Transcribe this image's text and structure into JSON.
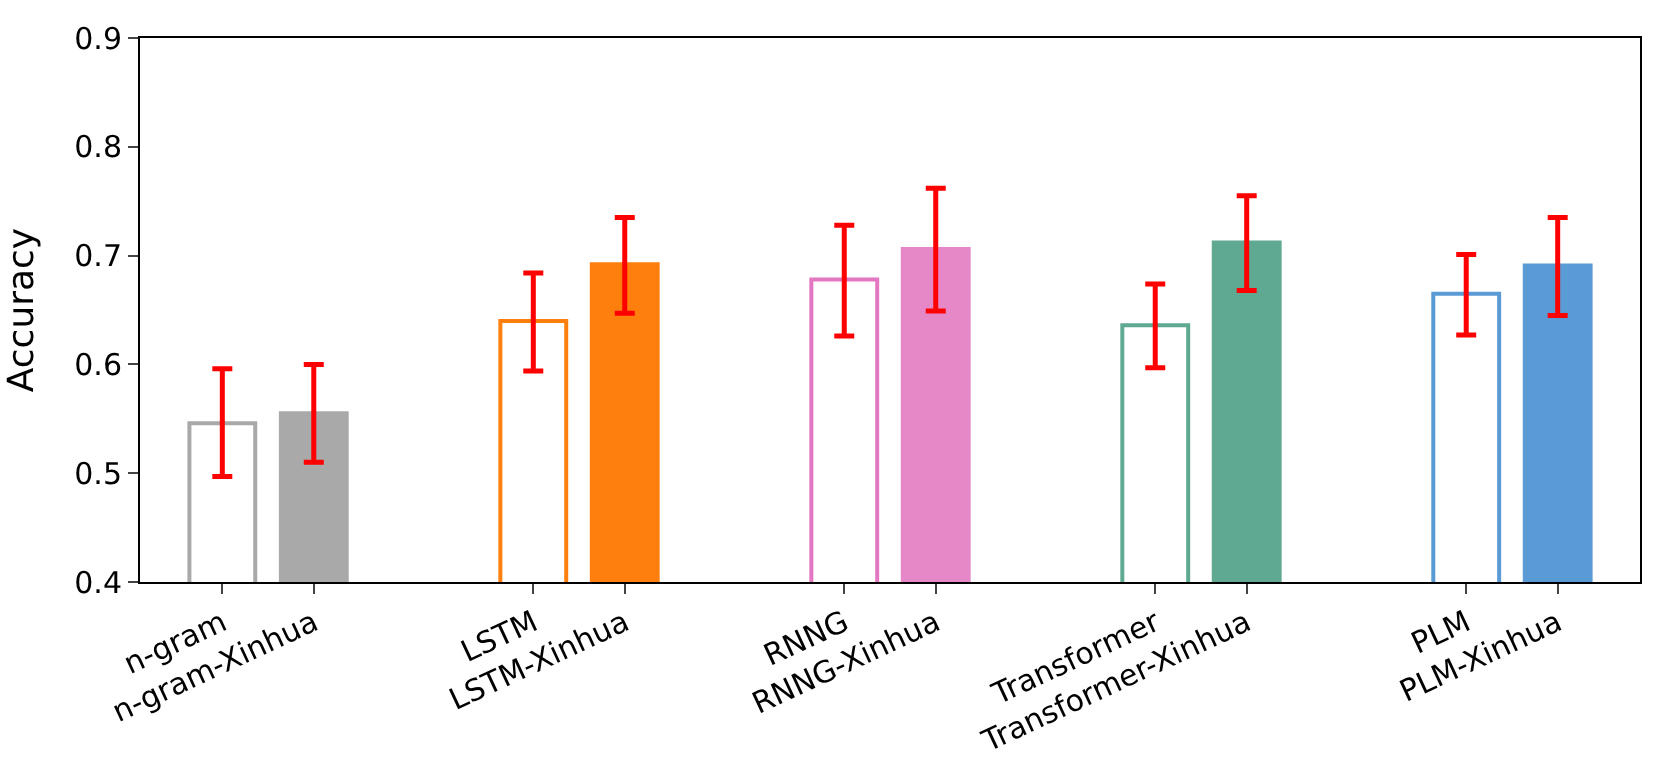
{
  "chart_data": {
    "type": "bar",
    "ylabel": "Accuracy",
    "categories": [
      "n-gram",
      "n-gram-Xinhua",
      "LSTM",
      "LSTM-Xinhua",
      "RNNG",
      "RNNG-Xinhua",
      "Transformer",
      "Transformer-Xinhua",
      "PLM",
      "PLM-Xinhua"
    ],
    "series": [
      {
        "colors": [
          "#a9a9a9",
          null,
          "#ff7f0e",
          null,
          "#e377c2",
          null,
          "#5fa993",
          null,
          "#5b9bd5",
          null
        ],
        "values": [
          0.546,
          null,
          0.64,
          null,
          0.678,
          null,
          0.636,
          null,
          0.665,
          null
        ],
        "errors": [
          [
            0.497,
            0.596
          ],
          null,
          [
            0.594,
            0.684
          ],
          null,
          [
            0.626,
            0.728
          ],
          null,
          [
            0.597,
            0.674
          ],
          null,
          [
            0.627,
            0.701
          ],
          null
        ]
      },
      {
        "colors": [
          null,
          "#a9a9a9",
          null,
          "#ff7f0e",
          null,
          "#e688c8",
          null,
          "#5fa993",
          null,
          "#5b9bd5"
        ],
        "values": [
          null,
          0.555,
          null,
          0.692,
          null,
          0.706,
          null,
          0.712,
          null,
          0.691
        ],
        "errors": [
          null,
          [
            0.51,
            0.6
          ],
          null,
          [
            0.647,
            0.735
          ],
          null,
          [
            0.649,
            0.762
          ],
          null,
          [
            0.668,
            0.755
          ],
          null,
          [
            0.645,
            0.735
          ]
        ]
      }
    ],
    "ylim": [
      0.4,
      0.9
    ],
    "yticks": [
      0.4,
      0.5,
      0.6,
      0.7,
      0.8,
      0.9
    ]
  }
}
